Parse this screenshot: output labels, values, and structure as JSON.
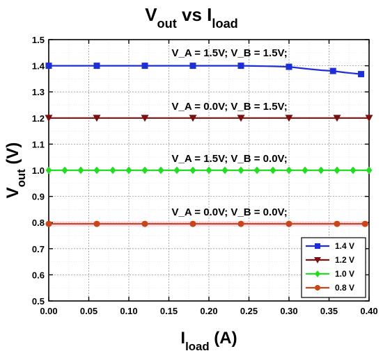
{
  "chart_data": {
    "type": "line",
    "title": {
      "main": "V",
      "sub": "out",
      "mid": " vs I",
      "sub2": "load"
    },
    "xlabel": {
      "main": "I",
      "sub": "load",
      "rest": " (A)"
    },
    "ylabel": {
      "main": "V",
      "sub": "out",
      "rest": " (V)"
    },
    "xlim": [
      0.0,
      0.4
    ],
    "ylim": [
      0.5,
      1.5
    ],
    "xticks": [
      "0.00",
      "0.05",
      "0.10",
      "0.15",
      "0.20",
      "0.25",
      "0.30",
      "0.35",
      "0.40"
    ],
    "yticks": [
      "0.5",
      "0.6",
      "0.7",
      "0.8",
      "0.9",
      "1.0",
      "1.1",
      "1.2",
      "1.3",
      "1.4",
      "1.5"
    ],
    "grid": true,
    "legend_position": "bottom-right",
    "series": [
      {
        "name": "1.4 V",
        "color": "#1f2fd6",
        "marker": "square",
        "marker_every": 3,
        "x": [
          0.0,
          0.02,
          0.04,
          0.06,
          0.08,
          0.1,
          0.12,
          0.14,
          0.16,
          0.18,
          0.2,
          0.22,
          0.24,
          0.26,
          0.28,
          0.3,
          0.32,
          0.34,
          0.355,
          0.37,
          0.39
        ],
        "y": [
          1.4,
          1.4,
          1.4,
          1.4,
          1.4,
          1.4,
          1.4,
          1.4,
          1.4,
          1.4,
          1.4,
          1.4,
          1.4,
          1.399,
          1.398,
          1.396,
          1.389,
          1.383,
          1.38,
          1.374,
          1.368
        ]
      },
      {
        "name": "1.2 V",
        "color": "#7a1010",
        "marker": "triangle-down",
        "marker_every": 3,
        "x": [
          0.0,
          0.02,
          0.04,
          0.06,
          0.08,
          0.1,
          0.12,
          0.14,
          0.16,
          0.18,
          0.2,
          0.22,
          0.24,
          0.26,
          0.28,
          0.3,
          0.32,
          0.34,
          0.36,
          0.38,
          0.4
        ],
        "y": [
          1.2,
          1.2,
          1.2,
          1.2,
          1.2,
          1.2,
          1.2,
          1.2,
          1.2,
          1.2,
          1.2,
          1.2,
          1.2,
          1.2,
          1.2,
          1.2,
          1.2,
          1.2,
          1.2,
          1.2,
          1.2
        ]
      },
      {
        "name": "1.0 V",
        "color": "#22dd22",
        "marker": "diamond",
        "marker_every": 1,
        "x": [
          0.0,
          0.02,
          0.04,
          0.06,
          0.08,
          0.1,
          0.12,
          0.14,
          0.16,
          0.18,
          0.2,
          0.22,
          0.24,
          0.26,
          0.28,
          0.3,
          0.32,
          0.34,
          0.36,
          0.38,
          0.4
        ],
        "y": [
          1.0,
          1.0,
          1.0,
          1.0,
          1.0,
          1.0,
          1.0,
          1.0,
          1.0,
          1.0,
          1.0,
          1.0,
          1.0,
          1.0,
          1.0,
          1.0,
          1.0,
          1.0,
          1.0,
          1.0,
          1.0
        ]
      },
      {
        "name": "0.8 V",
        "color": "#c8461a",
        "marker": "circle",
        "marker_every": 3,
        "x": [
          0.0,
          0.02,
          0.04,
          0.06,
          0.08,
          0.1,
          0.12,
          0.14,
          0.16,
          0.18,
          0.2,
          0.22,
          0.24,
          0.26,
          0.28,
          0.3,
          0.32,
          0.34,
          0.36,
          0.38,
          0.395
        ],
        "y": [
          0.795,
          0.795,
          0.795,
          0.795,
          0.795,
          0.795,
          0.795,
          0.795,
          0.795,
          0.795,
          0.795,
          0.795,
          0.795,
          0.795,
          0.795,
          0.795,
          0.795,
          0.795,
          0.795,
          0.795,
          0.795
        ]
      }
    ],
    "annotations": [
      {
        "text": "V_A = 1.5V; V_B = 1.5V;",
        "x": 0.15,
        "y": 1.45
      },
      {
        "text": "V_A = 0.0V; V_B = 1.5V;",
        "x": 0.15,
        "y": 1.245
      },
      {
        "text": "V_A = 1.5V; V_B = 0.0V;",
        "x": 0.15,
        "y": 1.045
      },
      {
        "text": "V_A = 0.0V; V_B = 0.0V;",
        "x": 0.15,
        "y": 0.84
      }
    ]
  }
}
